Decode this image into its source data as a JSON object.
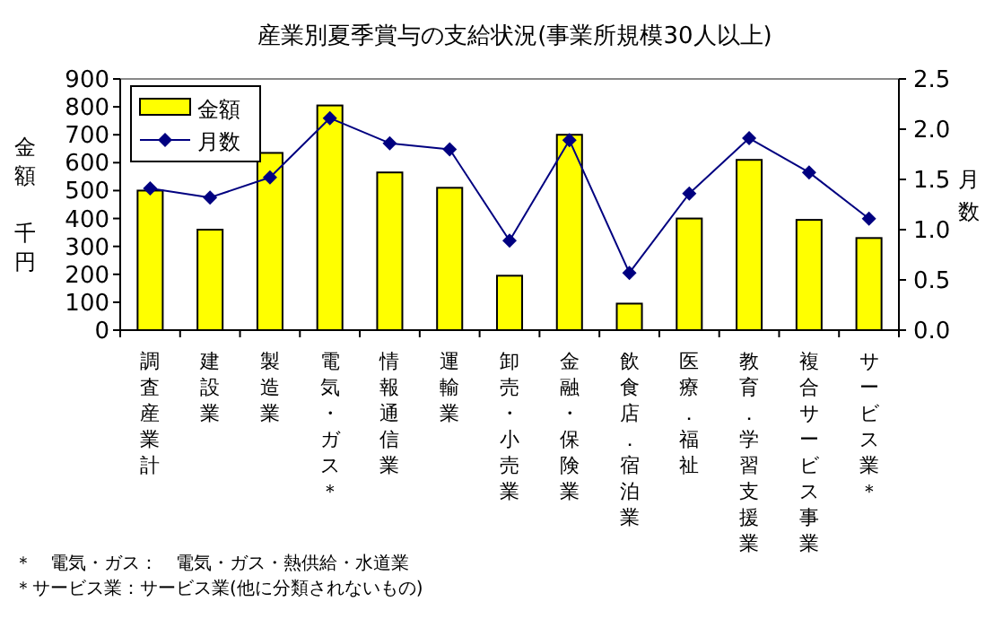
{
  "chart_data": {
    "type": "bar",
    "title": "産業別夏季賞与の支給状況(事業所規模30人以上)",
    "ylabel": "金額千円",
    "y2label": "月数",
    "categories": [
      "調査産業計",
      "建設業",
      "製造業",
      "電気・ガス＊",
      "情報通信業",
      "運輸業",
      "卸売・小売業",
      "金融・保険業",
      "飲食店．宿泊業",
      "医療．福祉",
      "教育．学習支援業",
      "複合サービス事業",
      "サービス業＊"
    ],
    "series": [
      {
        "name": "金額",
        "color": "#ffff00",
        "values": [
          500,
          360,
          635,
          805,
          565,
          510,
          195,
          700,
          95,
          400,
          610,
          395,
          330
        ]
      },
      {
        "name": "月数",
        "type": "line",
        "axis": "y2",
        "color": "#000080",
        "marker": "diamond",
        "values": [
          1.41,
          1.32,
          1.52,
          2.11,
          1.86,
          1.8,
          0.89,
          1.89,
          0.57,
          1.36,
          1.91,
          1.57,
          1.11
        ]
      }
    ],
    "ylim": [
      0,
      900
    ],
    "yticks": [
      0,
      100,
      200,
      300,
      400,
      500,
      600,
      700,
      800,
      900
    ],
    "y2lim": [
      0,
      2.5
    ],
    "y2ticks": [
      {
        "value": 0,
        "label": "0.0"
      },
      {
        "value": 0.5,
        "label": "0.5"
      },
      {
        "value": 1,
        "label": "1.0"
      },
      {
        "value": 1.5,
        "label": "1.5"
      },
      {
        "value": 2,
        "label": "2.0"
      },
      {
        "value": 2.5,
        "label": "2.5"
      }
    ],
    "legend": "top left",
    "grid": false,
    "annotations": [
      "＊　電気・ガス：　電気・ガス・熱供給・水道業",
      "＊サービス業：サービス業(他に分類されないもの)"
    ]
  }
}
